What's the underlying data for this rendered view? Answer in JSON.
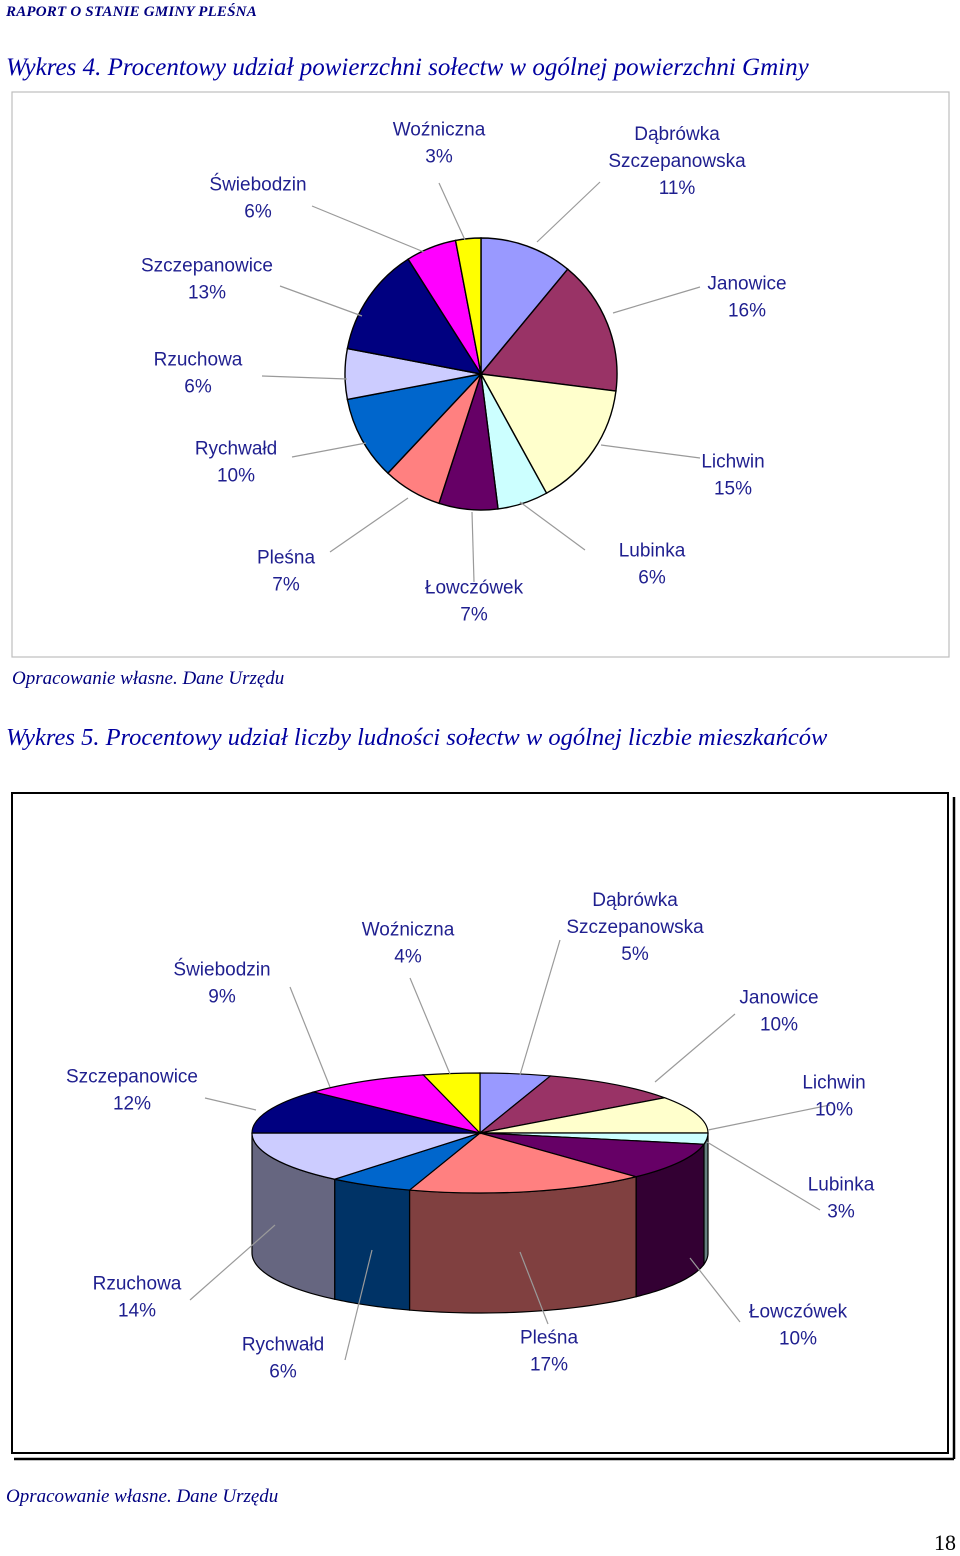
{
  "header": "RAPORT O STANIE GMINY PLEŚNA",
  "page_number": "18",
  "chart_data": [
    {
      "type": "pie",
      "title": "Wykres 4. Procentowy udział powierzchni sołectw w ogólnej powierzchni Gminy",
      "source": "Opracowanie własne. Dane Urzędu",
      "slices": [
        {
          "name": "Dąbrówka Szczepanowska",
          "label": [
            "Dąbrówka",
            "Szczepanowska",
            "11%"
          ],
          "value": 11,
          "color": "#9999ff"
        },
        {
          "name": "Janowice",
          "label": [
            "Janowice",
            "16%"
          ],
          "value": 16,
          "color": "#993366"
        },
        {
          "name": "Lichwin",
          "label": [
            "Lichwin",
            "15%"
          ],
          "value": 15,
          "color": "#ffffcc"
        },
        {
          "name": "Lubinka",
          "label": [
            "Lubinka",
            "6%"
          ],
          "value": 6,
          "color": "#ccffff"
        },
        {
          "name": "Łowczówek",
          "label": [
            "Łowczówek",
            "7%"
          ],
          "value": 7,
          "color": "#660066"
        },
        {
          "name": "Pleśna",
          "label": [
            "Pleśna",
            "7%"
          ],
          "value": 7,
          "color": "#ff8080"
        },
        {
          "name": "Rychwałd",
          "label": [
            "Rychwałd",
            "10%"
          ],
          "value": 10,
          "color": "#0066cc"
        },
        {
          "name": "Rzuchowa",
          "label": [
            "Rzuchowa",
            "6%"
          ],
          "value": 6,
          "color": "#ccccff"
        },
        {
          "name": "Szczepanowice",
          "label": [
            "Szczepanowice",
            "13%"
          ],
          "value": 13,
          "color": "#000080"
        },
        {
          "name": "Świebodzin",
          "label": [
            "Świebodzin",
            "6%"
          ],
          "value": 6,
          "color": "#ff00ff"
        },
        {
          "name": "Woźniczna",
          "label": [
            "Woźniczna",
            "3%"
          ],
          "value": 3,
          "color": "#ffff00"
        }
      ]
    },
    {
      "type": "pie",
      "title": "Wykres 5. Procentowy udział liczby ludności sołectw w ogólnej liczbie mieszkańców",
      "source": "Opracowanie własne. Dane Urzędu",
      "slices": [
        {
          "name": "Dąbrówka Szczepanowska",
          "label": [
            "Dąbrówka",
            "Szczepanowska",
            "5%"
          ],
          "value": 5,
          "color": "#9999ff"
        },
        {
          "name": "Janowice",
          "label": [
            "Janowice",
            "10%"
          ],
          "value": 10,
          "color": "#993366"
        },
        {
          "name": "Lichwin",
          "label": [
            "Lichwin",
            "10%"
          ],
          "value": 10,
          "color": "#ffffcc"
        },
        {
          "name": "Lubinka",
          "label": [
            "Lubinka",
            "3%"
          ],
          "value": 3,
          "color": "#ccffff"
        },
        {
          "name": "Łowczówek",
          "label": [
            "Łowczówek",
            "10%"
          ],
          "value": 10,
          "color": "#660066"
        },
        {
          "name": "Pleśna",
          "label": [
            "Pleśna",
            "17%"
          ],
          "value": 17,
          "color": "#ff8080"
        },
        {
          "name": "Rychwałd",
          "label": [
            "Rychwałd",
            "6%"
          ],
          "value": 6,
          "color": "#0066cc"
        },
        {
          "name": "Rzuchowa",
          "label": [
            "Rzuchowa",
            "14%"
          ],
          "value": 14,
          "color": "#ccccff"
        },
        {
          "name": "Szczepanowice",
          "label": [
            "Szczepanowice",
            "12%"
          ],
          "value": 12,
          "color": "#000080"
        },
        {
          "name": "Świebodzin",
          "label": [
            "Świebodzin",
            "9%"
          ],
          "value": 9,
          "color": "#ff00ff"
        },
        {
          "name": "Woźniczna",
          "label": [
            "Woźniczna",
            "4%"
          ],
          "value": 4,
          "color": "#ffff00"
        }
      ]
    }
  ]
}
